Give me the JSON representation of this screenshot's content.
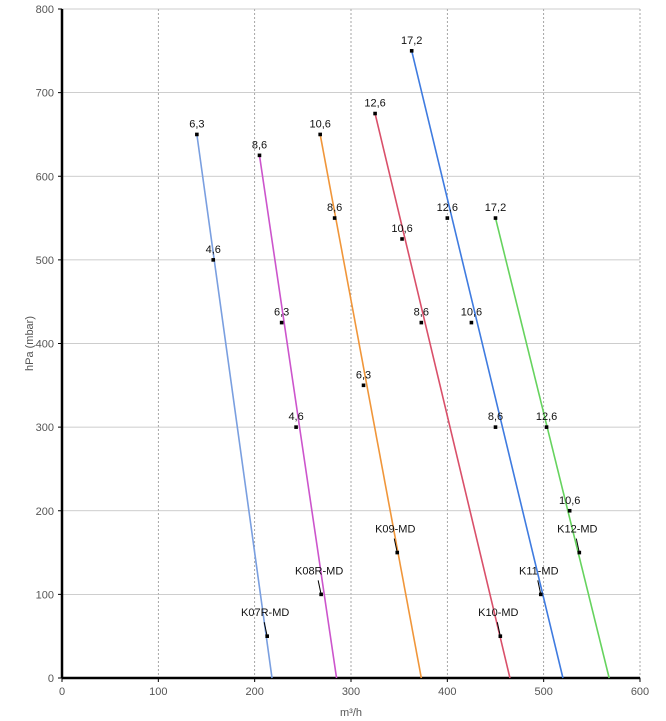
{
  "chart_data": {
    "type": "line",
    "title": "",
    "xlabel": "m³/h",
    "ylabel": "hPa (mbar)",
    "xlim": [
      0,
      600
    ],
    "ylim": [
      0,
      800
    ],
    "x_ticks": [
      0,
      100,
      200,
      300,
      400,
      500,
      600
    ],
    "y_ticks": [
      0,
      100,
      200,
      300,
      400,
      500,
      600,
      700,
      800
    ],
    "x_tick_labels": [
      "0",
      "100",
      "200",
      "300",
      "400",
      "500",
      "600"
    ],
    "y_tick_labels": [
      "0",
      "100",
      "200",
      "300",
      "400",
      "500",
      "600",
      "700",
      "800"
    ],
    "grid": true,
    "series": [
      {
        "name": "K07R-MD",
        "color": "#7a9fe0",
        "points": [
          [
            140,
            650
          ],
          [
            218,
            0
          ]
        ],
        "markers": [
          {
            "x": 140,
            "y": 650,
            "label": "6,3"
          },
          {
            "x": 157,
            "y": 500,
            "label": "4,6"
          }
        ],
        "series_label_point": {
          "x": 213,
          "y": 50
        }
      },
      {
        "name": "K08R-MD",
        "color": "#cc55cc",
        "points": [
          [
            205,
            625
          ],
          [
            285,
            0
          ]
        ],
        "markers": [
          {
            "x": 205,
            "y": 625,
            "label": "8,6"
          },
          {
            "x": 228,
            "y": 425,
            "label": "6,3"
          },
          {
            "x": 243,
            "y": 300,
            "label": "4,6"
          }
        ],
        "series_label_point": {
          "x": 269,
          "y": 100
        }
      },
      {
        "name": "K09-MD",
        "color": "#f0963a",
        "points": [
          [
            268,
            650
          ],
          [
            373,
            0
          ]
        ],
        "markers": [
          {
            "x": 268,
            "y": 650,
            "label": "10,6"
          },
          {
            "x": 283,
            "y": 550,
            "label": "8,6"
          },
          {
            "x": 313,
            "y": 350,
            "label": "6,3"
          }
        ],
        "series_label_point": {
          "x": 348,
          "y": 150
        }
      },
      {
        "name": "K10-MD",
        "color": "#d9506a",
        "points": [
          [
            325,
            675
          ],
          [
            465,
            0
          ]
        ],
        "markers": [
          {
            "x": 325,
            "y": 675,
            "label": "12,6"
          },
          {
            "x": 353,
            "y": 525,
            "label": "10,6"
          },
          {
            "x": 373,
            "y": 425,
            "label": "8,6"
          }
        ],
        "series_label_point": {
          "x": 455,
          "y": 50
        }
      },
      {
        "name": "K11-MD",
        "color": "#3f7be0",
        "points": [
          [
            363,
            750
          ],
          [
            520,
            0
          ]
        ],
        "markers": [
          {
            "x": 363,
            "y": 750,
            "label": "17,2"
          },
          {
            "x": 400,
            "y": 550,
            "label": "12,6"
          },
          {
            "x": 425,
            "y": 425,
            "label": "10,6"
          },
          {
            "x": 450,
            "y": 300,
            "label": "8,6"
          }
        ],
        "series_label_point": {
          "x": 497,
          "y": 100
        }
      },
      {
        "name": "K12-MD",
        "color": "#66d35e",
        "points": [
          [
            450,
            550
          ],
          [
            568,
            0
          ]
        ],
        "markers": [
          {
            "x": 450,
            "y": 550,
            "label": "17,2"
          },
          {
            "x": 503,
            "y": 300,
            "label": "12,6"
          },
          {
            "x": 527,
            "y": 200,
            "label": "10,6"
          }
        ],
        "series_label_point": {
          "x": 537,
          "y": 150
        }
      }
    ]
  }
}
